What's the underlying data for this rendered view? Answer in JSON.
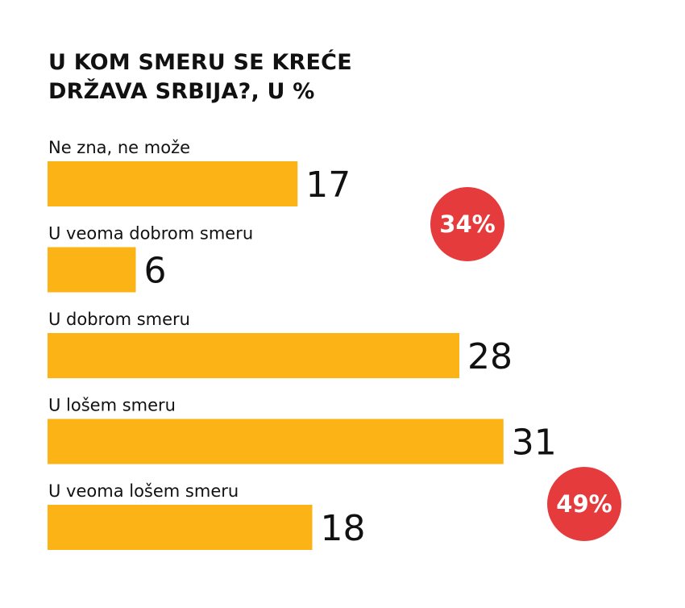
{
  "title_lines": [
    "U KOM SMERU SE KREĆE",
    "DRŽAVA SRBIJA?, U %"
  ],
  "colors": {
    "bar": "#FBB315",
    "badge": "#E63B3D",
    "text": "#111111",
    "background": "#FFFFFF"
  },
  "chart_data": {
    "type": "bar",
    "orientation": "horizontal",
    "title": "U KOM SMERU SE KREĆE DRŽAVA SRBIJA?, U %",
    "categories": [
      "Ne zna, ne može",
      "U veoma dobrom smeru",
      "U dobrom smeru",
      "U lošem smeru",
      "U veoma lošem smeru"
    ],
    "values": [
      17,
      6,
      28,
      31,
      18
    ],
    "value_labels": [
      "17",
      "6",
      "28",
      "31",
      "18"
    ],
    "unit": "%",
    "grid": false,
    "annotations": [
      {
        "text": "34%",
        "shape": "circle",
        "refers_to": [
          "U veoma dobrom smeru",
          "U dobrom smeru"
        ]
      },
      {
        "text": "49%",
        "shape": "circle",
        "refers_to": [
          "U lošem smeru",
          "U veoma lošem smeru"
        ]
      }
    ]
  }
}
